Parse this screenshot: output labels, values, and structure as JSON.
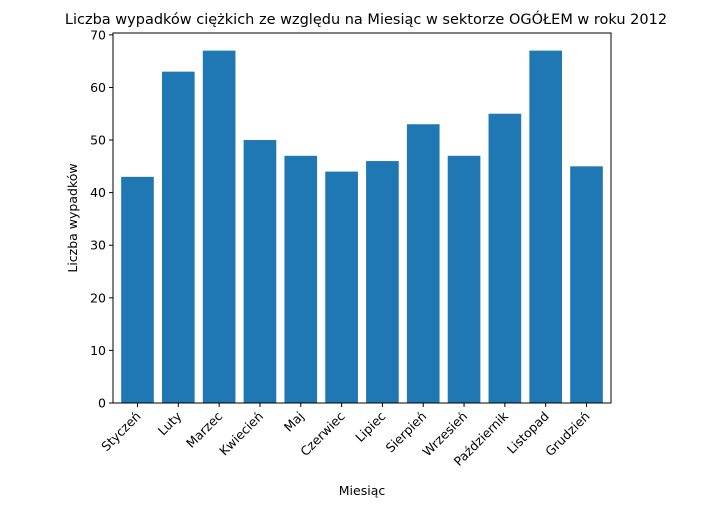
{
  "chart_data": {
    "type": "bar",
    "title": "Liczba wypadków ciężkich ze względu na Miesiąc w sektorze OGÓŁEM   w roku 2012",
    "xlabel": "Miesiąc",
    "ylabel": "Liczba wypadków",
    "categories": [
      "Styczeń",
      "Luty",
      "Marzec",
      "Kwiecień",
      "Maj",
      "Czerwiec",
      "Lipiec",
      "Sierpień",
      "Wrzesień",
      "Październik",
      "Listopad",
      "Grudzień"
    ],
    "values": [
      43,
      63,
      67,
      50,
      47,
      44,
      46,
      53,
      47,
      55,
      67,
      45
    ],
    "ylim": [
      0,
      70.35
    ],
    "yticks": [
      0,
      10,
      20,
      30,
      40,
      50,
      60,
      70
    ],
    "grid": false,
    "bar_color": "#1f77b4"
  }
}
